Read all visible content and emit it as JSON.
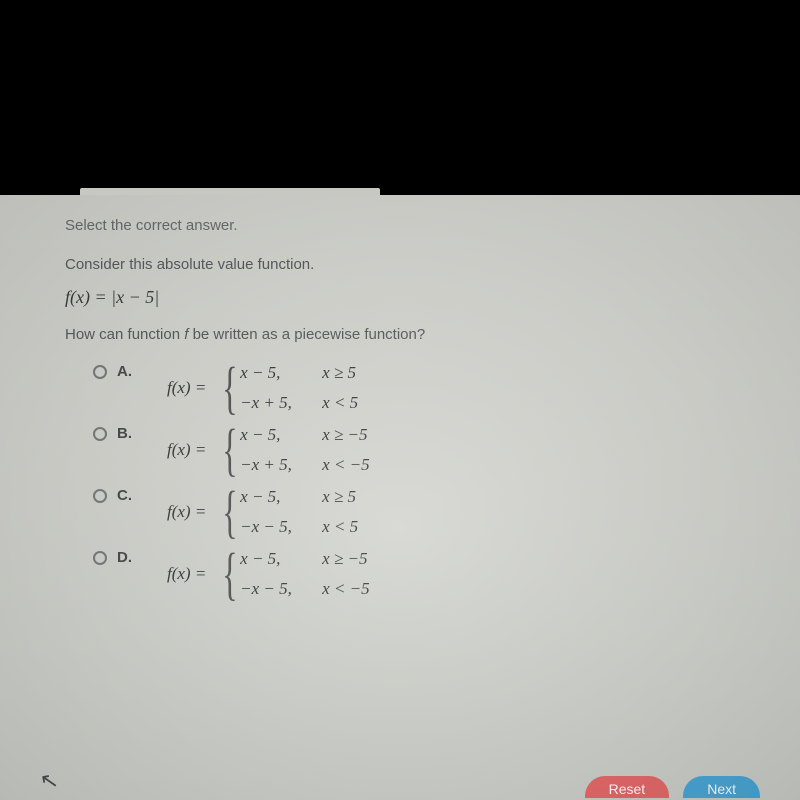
{
  "colors": {
    "page_bg_top": "#000000",
    "panel_bg": "#d4d5cf",
    "text_muted": "#6b6f72",
    "text_body": "#5a5e61",
    "text_math": "#3a3c3d",
    "radio_border": "#7a7d7f",
    "btn_reset": "#e66a6a",
    "btn_next": "#4aa8d8"
  },
  "instruction": "Select the correct answer.",
  "prompt": "Consider this absolute value function.",
  "given_equation": "f(x)  =  |x − 5|",
  "question_pre": "How can function ",
  "question_fvar": "f",
  "question_post": " be written as a piecewise function?",
  "fx_label": "f(x)  =",
  "options": [
    {
      "label": "A.",
      "cases": [
        {
          "expr": "x − 5,",
          "cond": "x ≥ 5"
        },
        {
          "expr": "−x + 5,",
          "cond": "x < 5"
        }
      ]
    },
    {
      "label": "B.",
      "cases": [
        {
          "expr": "x − 5,",
          "cond": "x ≥ −5"
        },
        {
          "expr": "−x + 5,",
          "cond": "x < −5"
        }
      ]
    },
    {
      "label": "C.",
      "cases": [
        {
          "expr": "x − 5,",
          "cond": "x ≥ 5"
        },
        {
          "expr": "−x − 5,",
          "cond": "x < 5"
        }
      ]
    },
    {
      "label": "D.",
      "cases": [
        {
          "expr": "x − 5,",
          "cond": "x ≥ −5"
        },
        {
          "expr": "−x − 5,",
          "cond": "x < −5"
        }
      ]
    }
  ],
  "buttons": {
    "reset": "Reset",
    "next": "Next"
  },
  "cursor_glyph": "↖"
}
